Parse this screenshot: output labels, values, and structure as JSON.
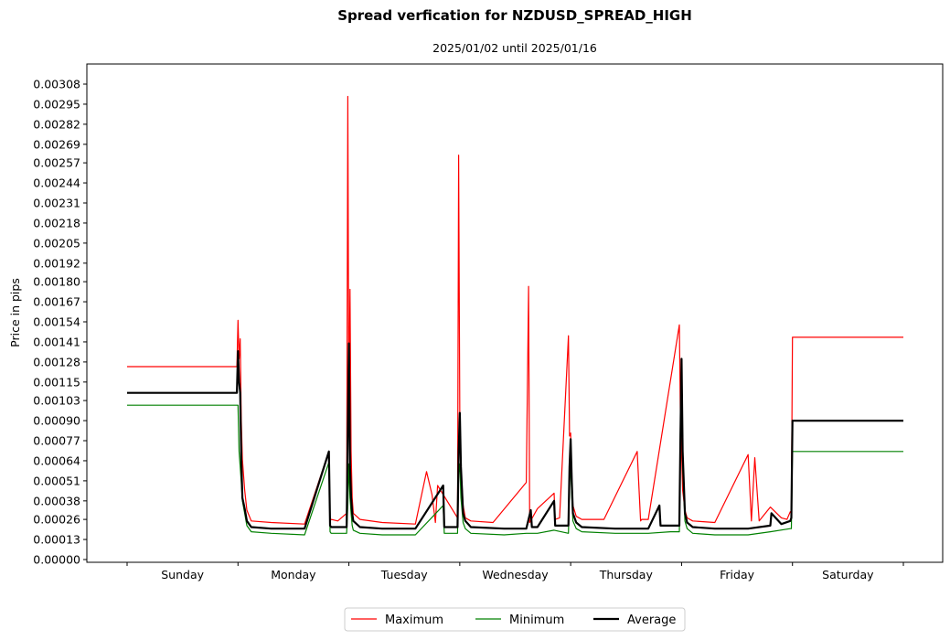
{
  "chart_data": {
    "type": "line",
    "title": "Spread verfication for NZDUSD_SPREAD_HIGH",
    "subtitle": "2025/01/02 until 2025/01/16",
    "xlabel": "",
    "ylabel": "Price in pips",
    "ylim": [
      0.0,
      0.00318
    ],
    "grid": false,
    "legend_placement": "bottom-center",
    "yticks": [
      "0.00000",
      "0.00013",
      "0.00026",
      "0.00038",
      "0.00051",
      "0.00064",
      "0.00077",
      "0.00090",
      "0.00103",
      "0.00115",
      "0.00128",
      "0.00141",
      "0.00154",
      "0.00167",
      "0.00180",
      "0.00192",
      "0.00205",
      "0.00218",
      "0.00231",
      "0.00244",
      "0.00257",
      "0.00269",
      "0.00282",
      "0.00295",
      "0.00308"
    ],
    "xticks": [
      "Sunday",
      "Monday",
      "Tuesday",
      "Wednesday",
      "Thursday",
      "Friday",
      "Saturday"
    ],
    "series": [
      {
        "name": "Maximum",
        "color": "#ff0000",
        "x": [
          0,
          0.99,
          1.0,
          1.01,
          1.02,
          1.03,
          1.04,
          1.06,
          1.08,
          1.12,
          1.3,
          1.6,
          1.82,
          1.83,
          1.84,
          1.9,
          1.98,
          1.99,
          2.0,
          2.01,
          2.02,
          2.03,
          2.04,
          2.1,
          2.3,
          2.6,
          2.7,
          2.75,
          2.78,
          2.8,
          2.98,
          2.99,
          3.0,
          3.01,
          3.03,
          3.05,
          3.1,
          3.3,
          3.6,
          3.62,
          3.63,
          3.7,
          3.85,
          3.86,
          3.9,
          3.98,
          3.99,
          4.0,
          4.01,
          4.02,
          4.05,
          4.1,
          4.3,
          4.6,
          4.63,
          4.64,
          4.7,
          4.98,
          4.99,
          5.0,
          5.01,
          5.03,
          5.05,
          5.1,
          5.3,
          5.6,
          5.63,
          5.66,
          5.7,
          5.8,
          5.9,
          5.95,
          5.98,
          5.99,
          6.0,
          6.5,
          7.0
        ],
        "values": [
          0.00125,
          0.00125,
          0.00155,
          0.0013,
          0.00143,
          0.0009,
          0.00065,
          0.00045,
          0.00032,
          0.00025,
          0.00024,
          0.00023,
          0.0007,
          0.00025,
          0.00026,
          0.00025,
          0.0003,
          0.003,
          0.0009,
          0.00175,
          0.0007,
          0.0004,
          0.0003,
          0.00026,
          0.00024,
          0.00023,
          0.00057,
          0.00042,
          0.00024,
          0.00048,
          0.00027,
          0.00262,
          0.0009,
          0.0006,
          0.00035,
          0.00027,
          0.00025,
          0.00024,
          0.0005,
          0.00177,
          0.00024,
          0.00033,
          0.00043,
          0.00026,
          0.00027,
          0.00145,
          0.0008,
          0.00082,
          0.00045,
          0.00035,
          0.00028,
          0.00026,
          0.00026,
          0.0007,
          0.00025,
          0.00026,
          0.00026,
          0.00152,
          0.0009,
          0.0007,
          0.00045,
          0.00032,
          0.00027,
          0.00025,
          0.00024,
          0.00068,
          0.00025,
          0.00066,
          0.00025,
          0.00034,
          0.00027,
          0.00026,
          0.00031,
          0.0003,
          0.00144,
          0.00144,
          0.00144
        ]
      },
      {
        "name": "Minimum",
        "color": "#008000",
        "x": [
          0,
          0.99,
          1.0,
          1.01,
          1.02,
          1.03,
          1.04,
          1.06,
          1.08,
          1.12,
          1.3,
          1.6,
          1.82,
          1.83,
          1.84,
          1.98,
          1.99,
          2.0,
          2.01,
          2.02,
          2.03,
          2.04,
          2.1,
          2.3,
          2.6,
          2.85,
          2.86,
          2.98,
          2.99,
          3.0,
          3.01,
          3.03,
          3.05,
          3.1,
          3.4,
          3.6,
          3.7,
          3.85,
          3.98,
          3.99,
          4.0,
          4.01,
          4.02,
          4.05,
          4.1,
          4.4,
          4.7,
          4.9,
          4.98,
          4.99,
          5.0,
          5.01,
          5.03,
          5.05,
          5.1,
          5.3,
          5.6,
          5.8,
          5.98,
          5.99,
          6.0,
          6.5,
          7.0
        ],
        "values": [
          0.001,
          0.001,
          0.001,
          0.0007,
          0.0006,
          0.0005,
          0.00038,
          0.0003,
          0.00022,
          0.00018,
          0.00017,
          0.00016,
          0.00063,
          0.00018,
          0.00017,
          0.00017,
          0.00035,
          0.00062,
          0.0004,
          0.0003,
          0.00022,
          0.00019,
          0.00017,
          0.00016,
          0.00016,
          0.00035,
          0.00017,
          0.00017,
          0.00055,
          0.00062,
          0.0004,
          0.00024,
          0.0002,
          0.00017,
          0.00016,
          0.00017,
          0.00017,
          0.00019,
          0.00017,
          0.0005,
          0.0006,
          0.0004,
          0.00025,
          0.0002,
          0.00018,
          0.00017,
          0.00017,
          0.00018,
          0.00018,
          0.0009,
          0.00102,
          0.0006,
          0.00025,
          0.0002,
          0.00017,
          0.00016,
          0.00016,
          0.00018,
          0.0002,
          0.0002,
          0.0007,
          0.0007,
          0.0007
        ]
      },
      {
        "name": "Average",
        "color": "#000000",
        "x": [
          0,
          0.99,
          1.0,
          1.01,
          1.02,
          1.03,
          1.04,
          1.06,
          1.08,
          1.12,
          1.3,
          1.6,
          1.82,
          1.83,
          1.84,
          1.98,
          1.99,
          2.0,
          2.01,
          2.02,
          2.03,
          2.04,
          2.1,
          2.3,
          2.6,
          2.85,
          2.86,
          2.98,
          2.99,
          3.0,
          3.01,
          3.03,
          3.05,
          3.1,
          3.4,
          3.6,
          3.64,
          3.65,
          3.7,
          3.85,
          3.86,
          3.98,
          3.99,
          4.0,
          4.01,
          4.02,
          4.05,
          4.1,
          4.4,
          4.7,
          4.8,
          4.81,
          4.98,
          4.99,
          5.0,
          5.01,
          5.03,
          5.05,
          5.1,
          5.3,
          5.6,
          5.8,
          5.81,
          5.9,
          5.98,
          5.99,
          6.0,
          6.5,
          7.0
        ],
        "values": [
          0.00108,
          0.00108,
          0.00135,
          0.00115,
          0.00108,
          0.00065,
          0.0004,
          0.00033,
          0.00025,
          0.00021,
          0.0002,
          0.0002,
          0.0007,
          0.00022,
          0.00021,
          0.00021,
          0.00085,
          0.0014,
          0.0006,
          0.0004,
          0.0003,
          0.00025,
          0.00021,
          0.0002,
          0.0002,
          0.00048,
          0.00021,
          0.00021,
          0.0007,
          0.00095,
          0.0006,
          0.0003,
          0.00025,
          0.00021,
          0.0002,
          0.0002,
          0.00032,
          0.00021,
          0.00021,
          0.00038,
          0.00022,
          0.00022,
          0.0006,
          0.00078,
          0.0005,
          0.0003,
          0.00024,
          0.00021,
          0.0002,
          0.0002,
          0.00035,
          0.00022,
          0.00022,
          0.0008,
          0.0013,
          0.0007,
          0.0003,
          0.00024,
          0.00021,
          0.0002,
          0.0002,
          0.00022,
          0.0003,
          0.00023,
          0.00025,
          0.00027,
          0.0009,
          0.0009,
          0.0009
        ]
      }
    ]
  }
}
